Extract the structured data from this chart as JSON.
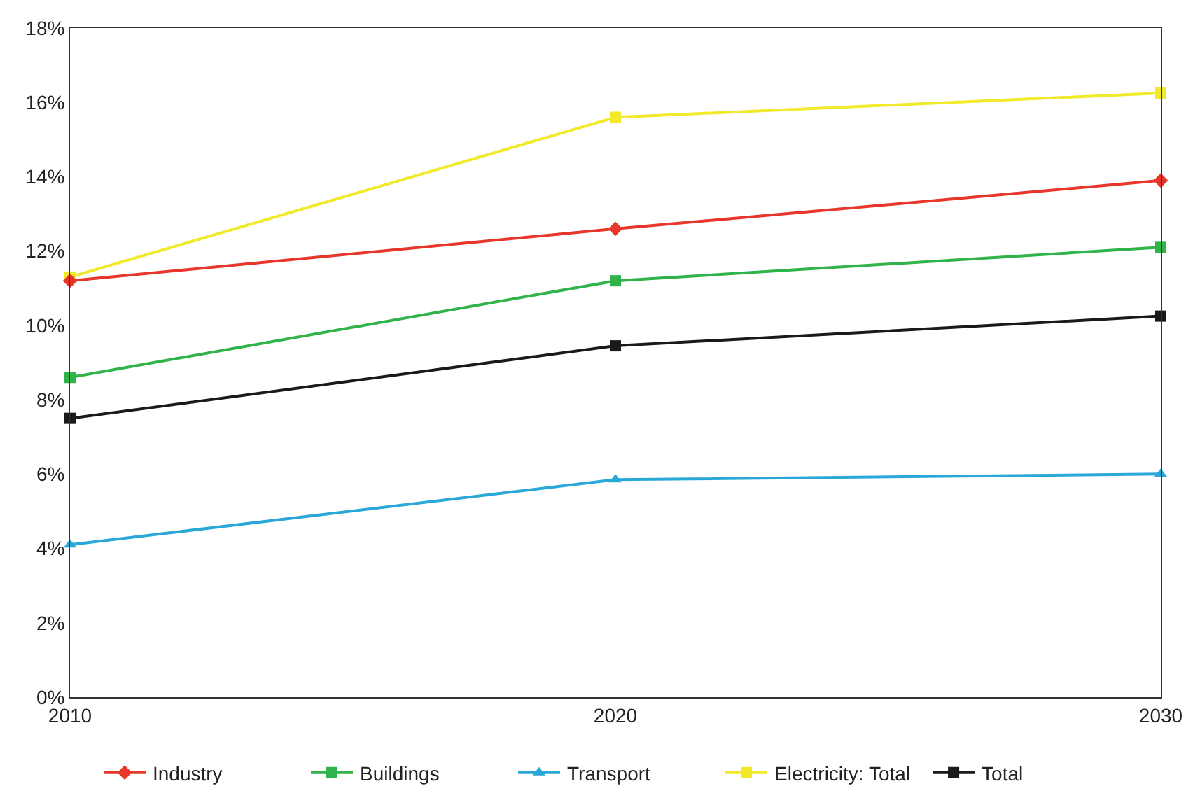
{
  "chart_data": {
    "type": "line",
    "x": [
      2010,
      2020,
      2030
    ],
    "xlim": [
      2010,
      2030
    ],
    "xticks": [
      2010,
      2020,
      2030
    ],
    "ylim": [
      0,
      18
    ],
    "yticks": [
      {
        "value": 0,
        "label": "0%"
      },
      {
        "value": 2,
        "label": "2%"
      },
      {
        "value": 4,
        "label": "4%"
      },
      {
        "value": 6,
        "label": "6%"
      },
      {
        "value": 8,
        "label": "8%"
      },
      {
        "value": 10,
        "label": "10%"
      },
      {
        "value": 12,
        "label": "12%"
      },
      {
        "value": 14,
        "label": "14%"
      },
      {
        "value": 16,
        "label": "16%"
      },
      {
        "value": 18,
        "label": "18%"
      }
    ],
    "legend": "bottom",
    "line_style": "solid",
    "series": [
      {
        "name": "Industry",
        "color": "#e8372a",
        "marker": "diamond",
        "values": [
          11.2,
          12.6,
          13.9
        ]
      },
      {
        "name": "Buildings",
        "color": "#2fb34a",
        "marker": "square",
        "values": [
          8.6,
          11.2,
          12.1
        ]
      },
      {
        "name": "Transport",
        "color": "#29a8d8",
        "marker": "triangle",
        "values": [
          4.1,
          5.85,
          6.0
        ]
      },
      {
        "name": "Electricity: Total",
        "color": "#f2e92a",
        "marker": "square",
        "values": [
          11.3,
          15.6,
          16.25
        ]
      },
      {
        "name": "Total",
        "color": "#1a1a1a",
        "marker": "square",
        "values": [
          7.5,
          9.45,
          10.25
        ]
      }
    ]
  }
}
